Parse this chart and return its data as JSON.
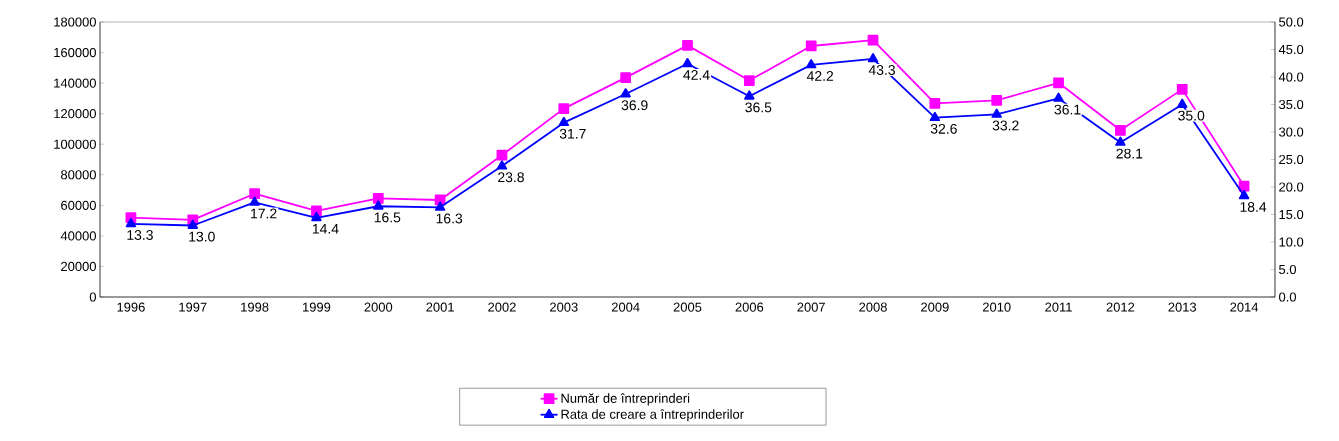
{
  "chart_data": {
    "type": "line",
    "categories": [
      "1996",
      "1997",
      "1998",
      "1999",
      "2000",
      "2001",
      "2002",
      "2003",
      "2004",
      "2005",
      "2006",
      "2007",
      "2008",
      "2009",
      "2010",
      "2011",
      "2012",
      "2013",
      "2014"
    ],
    "series": [
      {
        "name": "Număr de întreprinderi",
        "color": "#ff00ff",
        "marker": "square",
        "values": [
          52000,
          50500,
          67600,
          56400,
          64600,
          63500,
          92800,
          123300,
          143600,
          164700,
          141700,
          164300,
          168100,
          126700,
          128700,
          140200,
          109100,
          135900,
          72600
        ]
      },
      {
        "name": "Rata de creare a întreprinderilor",
        "color": "#0000ff",
        "marker": "triangle",
        "axis": "y2",
        "values": [
          13.3,
          13.0,
          17.2,
          14.4,
          16.5,
          16.3,
          23.8,
          31.7,
          36.9,
          42.4,
          36.5,
          42.2,
          43.3,
          32.6,
          33.2,
          36.1,
          28.1,
          35.0,
          18.4
        ],
        "value_labels": [
          "13.3",
          "13.0",
          "17.2",
          "14.4",
          "16.5",
          "16.3",
          "23.8",
          "31.7",
          "36.9",
          "42.4",
          "36.5",
          "42.2",
          "43.3",
          "32.6",
          "33.2",
          "36.1",
          "28.1",
          "35.0",
          "18.4"
        ]
      }
    ],
    "ylim": [
      0,
      180000
    ],
    "yticks": [
      0,
      20000,
      40000,
      60000,
      80000,
      100000,
      120000,
      140000,
      160000,
      180000
    ],
    "y2lim": [
      0,
      50
    ],
    "y2ticks": [
      {
        "value": 0,
        "label": "0.0"
      },
      {
        "value": 5,
        "label": "5.0"
      },
      {
        "value": 10,
        "label": "10.0"
      },
      {
        "value": 15,
        "label": "15.0"
      },
      {
        "value": 20,
        "label": "20.0"
      },
      {
        "value": 25,
        "label": "25.0"
      },
      {
        "value": 30,
        "label": "30.0"
      },
      {
        "value": 35,
        "label": "35.0"
      },
      {
        "value": 40,
        "label": "40.0"
      },
      {
        "value": 45,
        "label": "45.0"
      },
      {
        "value": 50,
        "label": "50.0"
      }
    ],
    "grid": false,
    "legend": "bottom",
    "line_style": "solid"
  }
}
